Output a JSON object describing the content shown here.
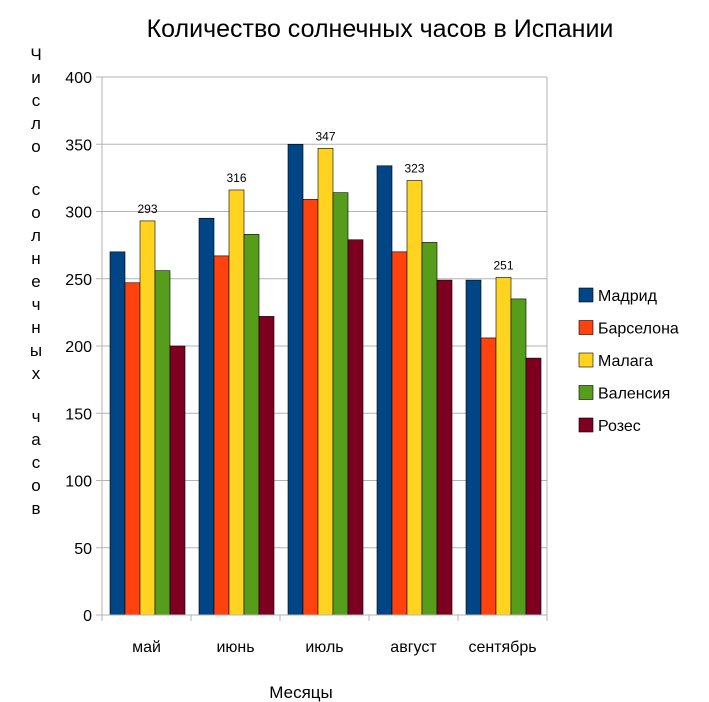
{
  "chart_data": {
    "type": "bar",
    "title": "Количество солнечных часов в Испании",
    "xlabel": "Месяцы",
    "ylabel": "Число солнечных часов",
    "ylim": [
      0,
      400
    ],
    "yticks": [
      0,
      50,
      100,
      150,
      200,
      250,
      300,
      350,
      400
    ],
    "grid": true,
    "legend_position": "right",
    "categories": [
      "май",
      "июнь",
      "июль",
      "август",
      "сентябрь"
    ],
    "series": [
      {
        "name": "Мадрид",
        "color": "#004586",
        "values": [
          270,
          295,
          350,
          334,
          249
        ]
      },
      {
        "name": "Барселона",
        "color": "#ff420e",
        "values": [
          247,
          267,
          309,
          270,
          206
        ]
      },
      {
        "name": "Малага",
        "color": "#ffd320",
        "values": [
          293,
          316,
          347,
          323,
          251
        ],
        "data_labels": [
          "293",
          "316",
          "347",
          "323",
          "251"
        ]
      },
      {
        "name": "Валенсия",
        "color": "#579d1c",
        "values": [
          256,
          283,
          314,
          277,
          235
        ]
      },
      {
        "name": "Розес",
        "color": "#7e0021",
        "values": [
          200,
          222,
          279,
          249,
          191
        ]
      }
    ]
  }
}
